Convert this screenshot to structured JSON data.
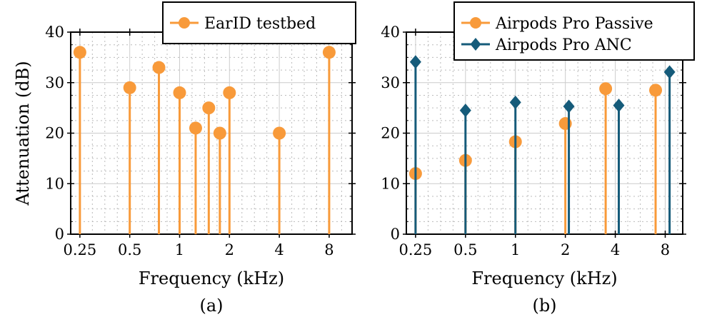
{
  "colors": {
    "passive": "#F89A3A",
    "anc": "#155B7A"
  },
  "chart_data": [
    {
      "type": "stem",
      "panel_label": "(a)",
      "xlabel": "Frequency (kHz)",
      "ylabel": "Attenuation (dB)",
      "x_scale": "log2",
      "xlim": [
        0.22,
        11
      ],
      "ylim": [
        0,
        40
      ],
      "x_ticks": [
        0.25,
        0.5,
        1,
        2,
        4,
        8
      ],
      "x_tick_labels": [
        "0.25",
        "0.5",
        "1",
        "2",
        "4",
        "8"
      ],
      "y_ticks": [
        0,
        10,
        20,
        30,
        40
      ],
      "y_tick_labels": [
        "0",
        "10",
        "20",
        "30",
        "40"
      ],
      "grid": true,
      "legend_position": "top-right",
      "series": [
        {
          "name": "EarID testbed",
          "marker": "circle",
          "color": "#F89A3A",
          "x": [
            0.25,
            0.5,
            0.75,
            1,
            1.25,
            1.5,
            1.75,
            2,
            4,
            8
          ],
          "y": [
            36,
            29,
            33,
            28,
            21,
            25,
            20,
            28,
            20,
            36
          ]
        }
      ]
    },
    {
      "type": "stem",
      "panel_label": "(b)",
      "xlabel": "Frequency (kHz)",
      "ylabel": "",
      "x_scale": "log2",
      "xlim": [
        0.22,
        10.2
      ],
      "ylim": [
        0,
        40
      ],
      "x_ticks": [
        0.25,
        0.5,
        1,
        2,
        4,
        8
      ],
      "x_tick_labels": [
        "0.25",
        "0.5",
        "1",
        "2",
        "4",
        "8"
      ],
      "y_ticks": [
        0,
        10,
        20,
        30,
        40
      ],
      "y_tick_labels": [
        "0",
        "10",
        "20",
        "30",
        "40"
      ],
      "grid": true,
      "legend_position": "top-right",
      "series": [
        {
          "name": "Airpods Pro Passive",
          "marker": "circle",
          "color": "#F89A3A",
          "x": [
            0.25,
            0.5,
            1,
            2,
            3.5,
            7
          ],
          "y": [
            12,
            14.6,
            18.3,
            21.9,
            28.8,
            28.5
          ]
        },
        {
          "name": "Airpods Pro ANC",
          "marker": "diamond",
          "color": "#155B7A",
          "x": [
            0.25,
            0.5,
            1,
            2.1,
            4.2,
            8.5
          ],
          "y": [
            34.1,
            24.5,
            26.1,
            25.3,
            25.5,
            32.1
          ]
        }
      ]
    }
  ]
}
